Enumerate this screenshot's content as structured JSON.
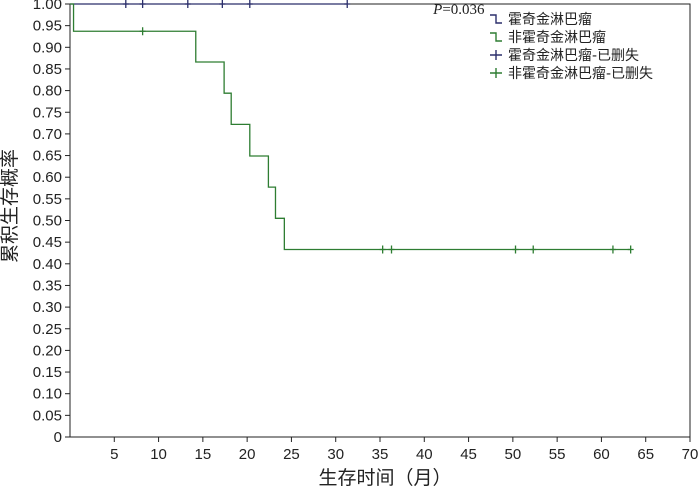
{
  "chart_data": {
    "type": "line",
    "subtype": "kaplan-meier",
    "xlabel": "生存时间（月）",
    "ylabel": "累积生存概率",
    "xlim": [
      0,
      70
    ],
    "ylim": [
      0,
      1.0
    ],
    "xticks": [
      5,
      10,
      15,
      20,
      25,
      30,
      35,
      40,
      45,
      50,
      55,
      60,
      65,
      70
    ],
    "yticks": [
      0,
      0.05,
      0.1,
      0.15,
      0.2,
      0.25,
      0.3,
      0.35,
      0.4,
      0.45,
      0.5,
      0.55,
      0.6,
      0.65,
      0.7,
      0.75,
      0.8,
      0.85,
      0.9,
      0.95,
      1.0
    ],
    "ytick_labels": [
      "0",
      "0.05",
      "0.10",
      "0.15",
      "0.20",
      "0.25",
      "0.30",
      "0.35",
      "0.40",
      "0.45",
      "0.50",
      "0.55",
      "0.60",
      "0.65",
      "0.70",
      "0.75",
      "0.80",
      "0.85",
      "0.90",
      "0.95",
      "1.00"
    ],
    "grid": false,
    "legend_position": "top-right",
    "annotation": {
      "italic": "P",
      "rest": "=0.036",
      "x_data": 41,
      "y_data": 0.988
    },
    "series": [
      {
        "name": "霍奇金淋巴瘤",
        "color": "#2b2f6b",
        "steps": [
          [
            0,
            1.0
          ],
          [
            31.3,
            1.0
          ]
        ]
      },
      {
        "name": "非霍奇金淋巴瘤",
        "color": "#2e7d32",
        "steps": [
          [
            0,
            1.0
          ],
          [
            0.4,
            0.937
          ],
          [
            14.2,
            0.866
          ],
          [
            17.4,
            0.794
          ],
          [
            18.2,
            0.722
          ],
          [
            20.3,
            0.649
          ],
          [
            22.4,
            0.577
          ],
          [
            23.2,
            0.505
          ],
          [
            24.2,
            0.433
          ],
          [
            63.3,
            0.433
          ]
        ]
      }
    ],
    "censored": [
      {
        "name": "霍奇金淋巴瘤-已删失",
        "color": "#2b2f6b",
        "points": [
          [
            6.3,
            1.0
          ],
          [
            8.2,
            1.0
          ],
          [
            13.3,
            1.0
          ],
          [
            17.2,
            1.0
          ],
          [
            20.3,
            1.0
          ],
          [
            31.3,
            1.0
          ]
        ]
      },
      {
        "name": "非霍奇金淋巴瘤-已删失",
        "color": "#2e7d32",
        "points": [
          [
            8.2,
            0.937
          ],
          [
            35.3,
            0.433
          ],
          [
            36.3,
            0.433
          ],
          [
            50.3,
            0.433
          ],
          [
            52.3,
            0.433
          ],
          [
            61.3,
            0.433
          ],
          [
            63.3,
            0.433
          ]
        ]
      }
    ]
  }
}
